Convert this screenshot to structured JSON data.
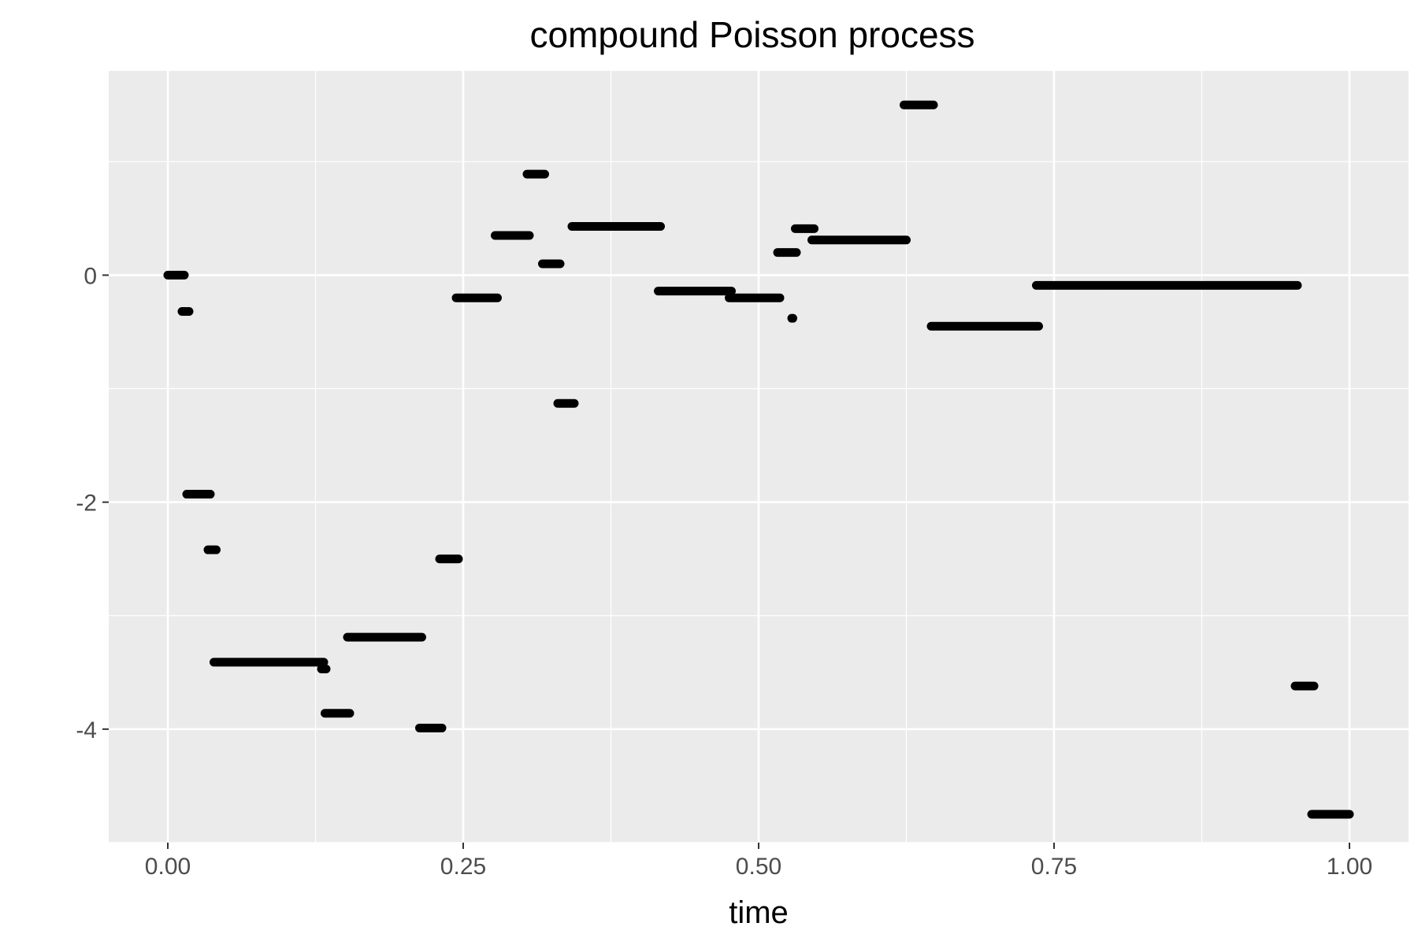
{
  "chart_data": {
    "type": "scatter",
    "title": "compound Poisson process",
    "xlabel": "time",
    "ylabel": "",
    "xlim": [
      -0.05,
      1.05
    ],
    "ylim": [
      -5.0,
      1.8
    ],
    "x_ticks": [
      0.0,
      0.25,
      0.5,
      0.75,
      1.0
    ],
    "x_tick_labels": [
      "0.00",
      "0.25",
      "0.50",
      "0.75",
      "1.00"
    ],
    "y_ticks": [
      -4,
      -2,
      0
    ],
    "y_tick_labels": [
      "-4",
      "-2",
      "0"
    ],
    "grid": true,
    "background": "#ebebeb",
    "grid_color": "#ffffff",
    "point_color": "#000000",
    "segments": [
      {
        "x0": 0.0,
        "x1": 0.014,
        "y": 0.0
      },
      {
        "x0": 0.012,
        "x1": 0.018,
        "y": -0.32
      },
      {
        "x0": 0.016,
        "x1": 0.036,
        "y": -1.93
      },
      {
        "x0": 0.034,
        "x1": 0.041,
        "y": -2.42
      },
      {
        "x0": 0.039,
        "x1": 0.132,
        "y": -3.41
      },
      {
        "x0": 0.13,
        "x1": 0.134,
        "y": -3.47
      },
      {
        "x0": 0.133,
        "x1": 0.154,
        "y": -3.86
      },
      {
        "x0": 0.152,
        "x1": 0.215,
        "y": -3.19
      },
      {
        "x0": 0.213,
        "x1": 0.232,
        "y": -3.99
      },
      {
        "x0": 0.23,
        "x1": 0.246,
        "y": -2.5
      },
      {
        "x0": 0.244,
        "x1": 0.279,
        "y": -0.2
      },
      {
        "x0": 0.277,
        "x1": 0.306,
        "y": 0.35
      },
      {
        "x0": 0.304,
        "x1": 0.319,
        "y": 0.89
      },
      {
        "x0": 0.317,
        "x1": 0.332,
        "y": 0.1
      },
      {
        "x0": 0.33,
        "x1": 0.344,
        "y": -1.13
      },
      {
        "x0": 0.342,
        "x1": 0.417,
        "y": 0.43
      },
      {
        "x0": 0.415,
        "x1": 0.477,
        "y": -0.14
      },
      {
        "x0": 0.475,
        "x1": 0.518,
        "y": -0.2
      },
      {
        "x0": 0.516,
        "x1": 0.532,
        "y": 0.2
      },
      {
        "x0": 0.528,
        "x1": 0.529,
        "y": -0.38
      },
      {
        "x0": 0.531,
        "x1": 0.547,
        "y": 0.41
      },
      {
        "x0": 0.545,
        "x1": 0.625,
        "y": 0.31
      },
      {
        "x0": 0.623,
        "x1": 0.648,
        "y": 1.5
      },
      {
        "x0": 0.646,
        "x1": 0.737,
        "y": -0.45
      },
      {
        "x0": 0.735,
        "x1": 0.956,
        "y": -0.09
      },
      {
        "x0": 0.954,
        "x1": 0.97,
        "y": -3.62
      },
      {
        "x0": 0.968,
        "x1": 1.0,
        "y": -4.75
      }
    ]
  }
}
